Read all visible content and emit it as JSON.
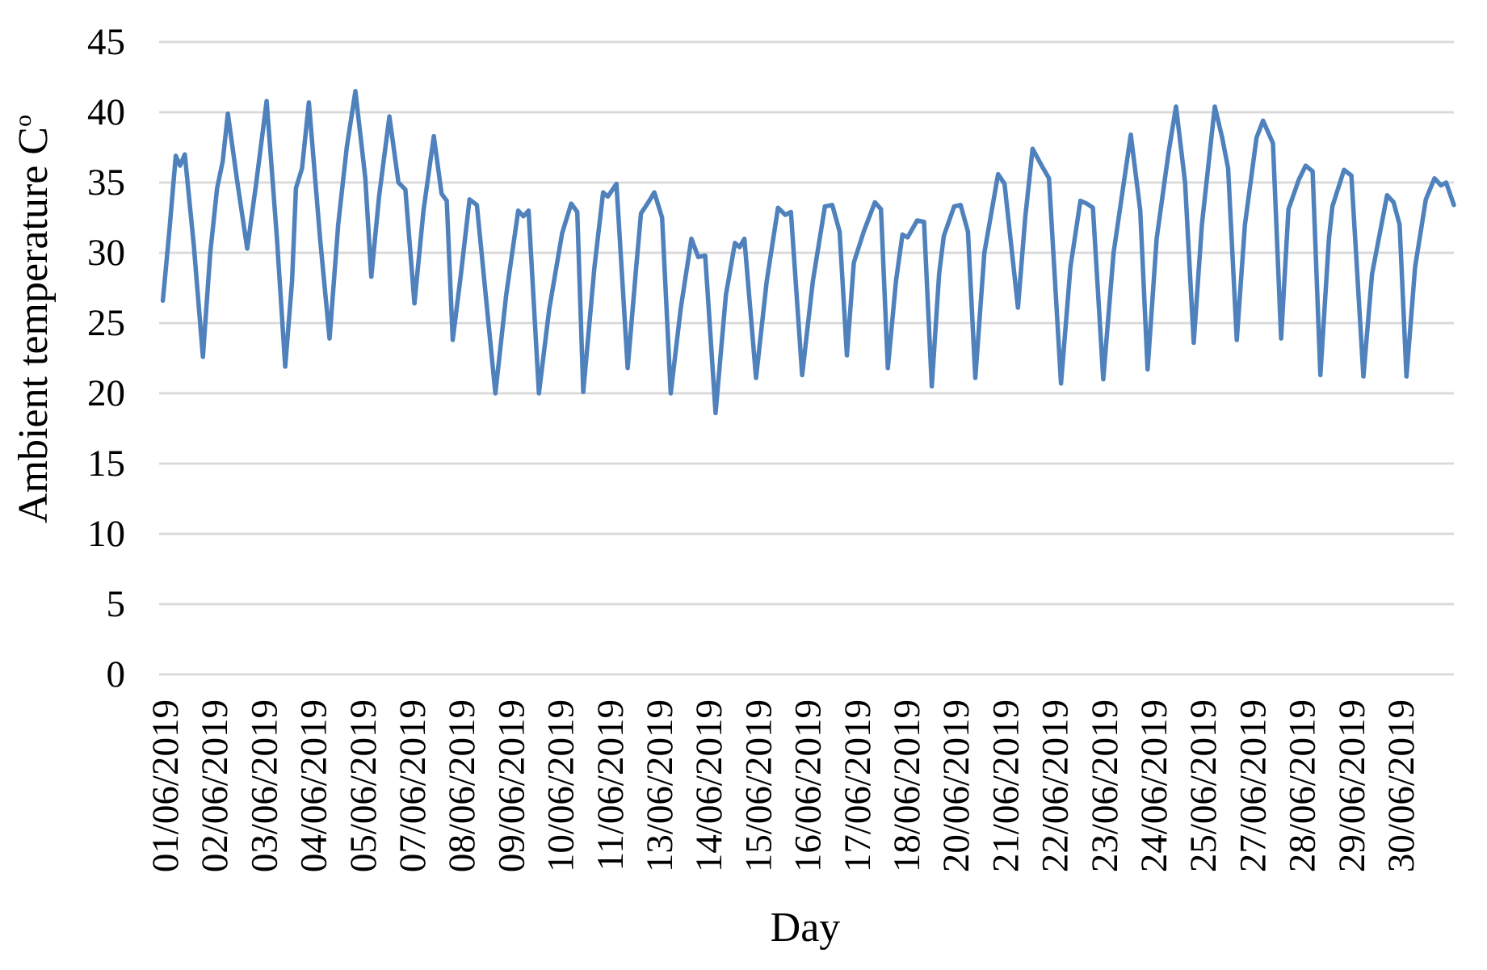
{
  "chart_data": {
    "type": "line",
    "title": "",
    "xlabel": "Day",
    "ylabel_main": "Ambient temperature  C",
    "ylabel_sup": "o",
    "ylabel_full": "Ambient temperature C°",
    "ylim": [
      0,
      45
    ],
    "y_ticks": [
      0,
      5,
      10,
      15,
      20,
      25,
      30,
      35,
      40,
      45
    ],
    "x_tick_labels": [
      "01/06/2019",
      "02/06/2019",
      "03/06/2019",
      "04/06/2019",
      "05/06/2019",
      "07/06/2019",
      "08/06/2019",
      "09/06/2019",
      "10/06/2019",
      "11/06/2019",
      "13/06/2019",
      "14/06/2019",
      "15/06/2019",
      "16/06/2019",
      "17/06/2019",
      "18/06/2019",
      "20/06/2019",
      "21/06/2019",
      "22/06/2019",
      "23/06/2019",
      "24/06/2019",
      "25/06/2019",
      "27/06/2019",
      "28/06/2019",
      "29/06/2019",
      "30/06/2019"
    ],
    "x_days_range": [
      0,
      30
    ],
    "grid": true,
    "grid_color": "#D9D9D9",
    "legend": "none",
    "series": [
      {
        "name": "Ambient temperature",
        "color": "#4F81BD",
        "points": [
          [
            0.03,
            26.6
          ],
          [
            0.18,
            31.5
          ],
          [
            0.33,
            36.9
          ],
          [
            0.43,
            36.2
          ],
          [
            0.54,
            37.0
          ],
          [
            0.75,
            30.5
          ],
          [
            0.96,
            22.6
          ],
          [
            1.13,
            30.0
          ],
          [
            1.29,
            34.6
          ],
          [
            1.42,
            36.5
          ],
          [
            1.54,
            39.9
          ],
          [
            1.76,
            35.0
          ],
          [
            1.99,
            30.3
          ],
          [
            2.2,
            35.0
          ],
          [
            2.44,
            40.8
          ],
          [
            2.68,
            31.0
          ],
          [
            2.87,
            21.9
          ],
          [
            3.03,
            28.0
          ],
          [
            3.12,
            34.6
          ],
          [
            3.26,
            36.0
          ],
          [
            3.42,
            40.7
          ],
          [
            3.68,
            31.0
          ],
          [
            3.9,
            23.9
          ],
          [
            4.1,
            32.0
          ],
          [
            4.3,
            37.5
          ],
          [
            4.5,
            41.5
          ],
          [
            4.73,
            35.3
          ],
          [
            4.87,
            28.3
          ],
          [
            5.05,
            34.0
          ],
          [
            5.29,
            39.7
          ],
          [
            5.5,
            35.0
          ],
          [
            5.66,
            34.5
          ],
          [
            5.87,
            26.4
          ],
          [
            6.08,
            33.0
          ],
          [
            6.32,
            38.3
          ],
          [
            6.5,
            34.2
          ],
          [
            6.62,
            33.7
          ],
          [
            6.76,
            23.8
          ],
          [
            6.95,
            28.5
          ],
          [
            7.15,
            33.8
          ],
          [
            7.32,
            33.4
          ],
          [
            7.75,
            20.0
          ],
          [
            8.0,
            27.0
          ],
          [
            8.28,
            33.0
          ],
          [
            8.4,
            32.6
          ],
          [
            8.52,
            33.0
          ],
          [
            8.76,
            20.0
          ],
          [
            9.0,
            26.0
          ],
          [
            9.3,
            31.4
          ],
          [
            9.51,
            33.5
          ],
          [
            9.65,
            32.9
          ],
          [
            9.79,
            20.1
          ],
          [
            10.05,
            29.0
          ],
          [
            10.25,
            34.3
          ],
          [
            10.36,
            34.0
          ],
          [
            10.56,
            34.9
          ],
          [
            10.82,
            21.8
          ],
          [
            11.02,
            29.0
          ],
          [
            11.13,
            32.8
          ],
          [
            11.3,
            33.6
          ],
          [
            11.44,
            34.3
          ],
          [
            11.62,
            32.5
          ],
          [
            11.82,
            20.0
          ],
          [
            12.05,
            26.0
          ],
          [
            12.3,
            31.0
          ],
          [
            12.46,
            29.7
          ],
          [
            12.62,
            29.8
          ],
          [
            12.86,
            18.6
          ],
          [
            13.1,
            27.0
          ],
          [
            13.31,
            30.7
          ],
          [
            13.42,
            30.4
          ],
          [
            13.53,
            31.0
          ],
          [
            13.8,
            21.1
          ],
          [
            14.05,
            28.0
          ],
          [
            14.31,
            33.2
          ],
          [
            14.48,
            32.7
          ],
          [
            14.61,
            32.9
          ],
          [
            14.87,
            21.3
          ],
          [
            15.12,
            28.0
          ],
          [
            15.4,
            33.3
          ],
          [
            15.57,
            33.4
          ],
          [
            15.74,
            31.5
          ],
          [
            15.91,
            22.7
          ],
          [
            16.07,
            29.3
          ],
          [
            16.3,
            31.5
          ],
          [
            16.56,
            33.6
          ],
          [
            16.7,
            33.1
          ],
          [
            16.86,
            21.8
          ],
          [
            17.05,
            28.0
          ],
          [
            17.2,
            31.3
          ],
          [
            17.32,
            31.1
          ],
          [
            17.54,
            32.3
          ],
          [
            17.7,
            32.2
          ],
          [
            17.88,
            20.5
          ],
          [
            18.05,
            28.5
          ],
          [
            18.16,
            31.2
          ],
          [
            18.4,
            33.3
          ],
          [
            18.55,
            33.4
          ],
          [
            18.72,
            31.5
          ],
          [
            18.89,
            21.1
          ],
          [
            19.1,
            30.0
          ],
          [
            19.42,
            35.6
          ],
          [
            19.57,
            34.9
          ],
          [
            19.88,
            26.1
          ],
          [
            20.05,
            32.5
          ],
          [
            20.22,
            37.4
          ],
          [
            20.45,
            36.1
          ],
          [
            20.6,
            35.3
          ],
          [
            20.88,
            20.7
          ],
          [
            21.1,
            29.0
          ],
          [
            21.33,
            33.7
          ],
          [
            21.48,
            33.5
          ],
          [
            21.62,
            33.2
          ],
          [
            21.86,
            21.0
          ],
          [
            22.1,
            30.0
          ],
          [
            22.5,
            38.4
          ],
          [
            22.72,
            33.0
          ],
          [
            22.89,
            21.7
          ],
          [
            23.1,
            31.0
          ],
          [
            23.37,
            37.0
          ],
          [
            23.55,
            40.4
          ],
          [
            23.76,
            35.0
          ],
          [
            23.96,
            23.6
          ],
          [
            24.15,
            32.0
          ],
          [
            24.45,
            40.4
          ],
          [
            24.62,
            38.2
          ],
          [
            24.76,
            36.0
          ],
          [
            24.96,
            23.8
          ],
          [
            25.15,
            32.0
          ],
          [
            25.42,
            38.2
          ],
          [
            25.57,
            39.4
          ],
          [
            25.8,
            37.8
          ],
          [
            25.99,
            23.9
          ],
          [
            26.16,
            33.1
          ],
          [
            26.4,
            35.2
          ],
          [
            26.56,
            36.2
          ],
          [
            26.72,
            35.8
          ],
          [
            26.9,
            21.3
          ],
          [
            27.1,
            31.0
          ],
          [
            27.18,
            33.3
          ],
          [
            27.45,
            35.9
          ],
          [
            27.62,
            35.5
          ],
          [
            27.9,
            21.2
          ],
          [
            28.1,
            28.5
          ],
          [
            28.45,
            34.1
          ],
          [
            28.6,
            33.6
          ],
          [
            28.74,
            32.0
          ],
          [
            28.9,
            21.2
          ],
          [
            29.1,
            29.0
          ],
          [
            29.35,
            33.8
          ],
          [
            29.55,
            35.3
          ],
          [
            29.7,
            34.8
          ],
          [
            29.82,
            35.0
          ],
          [
            30.0,
            33.4
          ]
        ]
      }
    ]
  }
}
